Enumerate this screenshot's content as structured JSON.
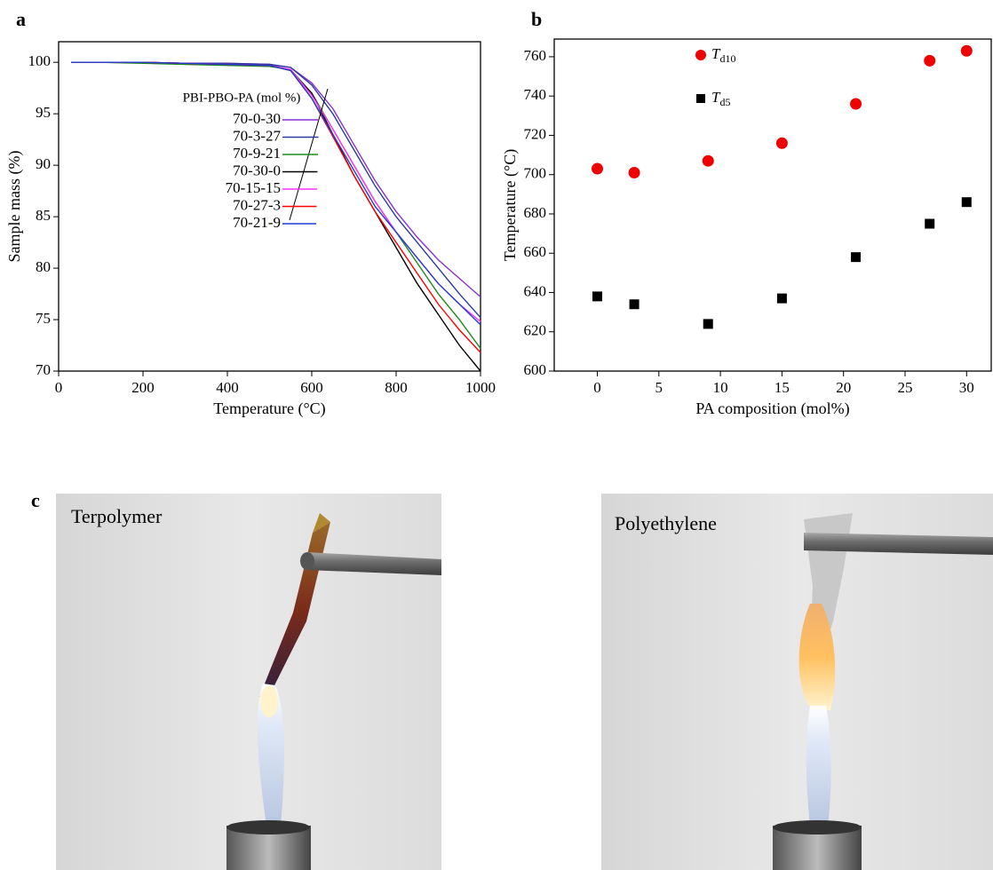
{
  "chart_data": [
    {
      "type": "line",
      "panel_label": "a",
      "xlabel": "Temperature (°C)",
      "ylabel": "Sample mass (%)",
      "legend_title": "PBI-PBO-PA (mol %)",
      "x": [
        30,
        100,
        200,
        300,
        400,
        500,
        550,
        600,
        650,
        700,
        750,
        800,
        850,
        900,
        950,
        1000
      ],
      "series": [
        {
          "name": "70-0-30",
          "color": "#8b2fd6",
          "values": [
            100,
            100,
            100,
            99.9,
            99.9,
            99.8,
            99.5,
            98,
            95.5,
            92,
            88.5,
            85.5,
            83,
            80.8,
            79,
            77.2
          ]
        },
        {
          "name": "70-3-27",
          "color": "#2a3a9e",
          "values": [
            100,
            100,
            100,
            99.9,
            99.9,
            99.8,
            99.5,
            97.8,
            95,
            91.5,
            88,
            85,
            82.5,
            80,
            77.5,
            75.2
          ]
        },
        {
          "name": "70-9-21",
          "color": "#1e8a1e",
          "values": [
            100,
            100,
            99.9,
            99.8,
            99.7,
            99.6,
            99.3,
            97,
            93.5,
            90,
            86.5,
            83.5,
            80.5,
            77.5,
            75,
            72.2
          ]
        },
        {
          "name": "70-30-0",
          "color": "#000000",
          "values": [
            100,
            100,
            100,
            99.9,
            99.8,
            99.7,
            99.2,
            97,
            93,
            89,
            85.5,
            82,
            78.5,
            75.5,
            72.5,
            70
          ]
        },
        {
          "name": "70-15-15",
          "color": "#ff33ff",
          "values": [
            100,
            100,
            100,
            99.9,
            99.8,
            99.7,
            99.3,
            96.8,
            93.5,
            90,
            86.5,
            83.5,
            81,
            78.5,
            76.5,
            74.8
          ]
        },
        {
          "name": "70-27-3",
          "color": "#ff0000",
          "values": [
            100,
            100,
            100,
            99.9,
            99.8,
            99.7,
            99.2,
            96.5,
            92.8,
            89,
            85.5,
            82.5,
            79.5,
            76.5,
            74,
            71.8
          ]
        },
        {
          "name": "70-21-9",
          "color": "#1f3fd0",
          "values": [
            100,
            100,
            100,
            99.9,
            99.8,
            99.7,
            99.2,
            96.5,
            93,
            89.5,
            86,
            83.5,
            81,
            78.5,
            76.5,
            74.5
          ]
        }
      ],
      "xlim": [
        0,
        1000
      ],
      "xticks": [
        0,
        200,
        400,
        600,
        800,
        1000
      ],
      "ylim": [
        70,
        102
      ],
      "yticks": [
        70,
        75,
        80,
        85,
        90,
        95,
        100
      ]
    },
    {
      "type": "scatter",
      "panel_label": "b",
      "xlabel": "PA composition (mol%)",
      "ylabel": "Temperature (°C)",
      "x": [
        0,
        3,
        9,
        15,
        21,
        27,
        30
      ],
      "series": [
        {
          "name": "Td10",
          "color": "#ee0000",
          "marker": "circle",
          "values": [
            703,
            701,
            707,
            716,
            736,
            758,
            763
          ]
        },
        {
          "name": "Td5",
          "color": "#000000",
          "marker": "square",
          "values": [
            638,
            634,
            624,
            637,
            658,
            675,
            686
          ]
        }
      ],
      "xlim": [
        -3.5,
        32
      ],
      "xticks": [
        0,
        5,
        10,
        15,
        20,
        25,
        30
      ],
      "ylim": [
        600,
        769
      ],
      "yticks": [
        600,
        620,
        640,
        660,
        680,
        700,
        720,
        740,
        760
      ]
    }
  ],
  "photos": {
    "panel_label": "c",
    "labels": [
      "Terpolymer",
      "Polyethylene"
    ]
  }
}
